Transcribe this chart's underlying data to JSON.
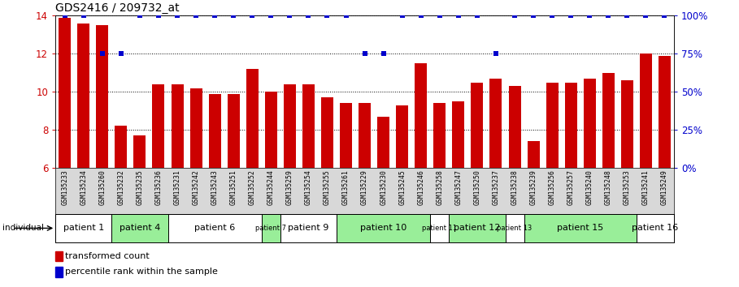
{
  "title": "GDS2416 / 209732_at",
  "samples": [
    "GSM135233",
    "GSM135234",
    "GSM135260",
    "GSM135232",
    "GSM135235",
    "GSM135236",
    "GSM135231",
    "GSM135242",
    "GSM135243",
    "GSM135251",
    "GSM135252",
    "GSM135244",
    "GSM135259",
    "GSM135254",
    "GSM135255",
    "GSM135261",
    "GSM135229",
    "GSM135230",
    "GSM135245",
    "GSM135246",
    "GSM135258",
    "GSM135247",
    "GSM135250",
    "GSM135237",
    "GSM135238",
    "GSM135239",
    "GSM135256",
    "GSM135257",
    "GSM135240",
    "GSM135248",
    "GSM135253",
    "GSM135241",
    "GSM135249"
  ],
  "bar_values": [
    13.9,
    13.6,
    13.5,
    8.2,
    7.7,
    10.4,
    10.4,
    10.2,
    9.9,
    9.9,
    11.2,
    10.0,
    10.4,
    10.4,
    9.7,
    9.4,
    9.4,
    8.7,
    9.3,
    11.5,
    9.4,
    9.5,
    10.5,
    10.7,
    10.3,
    7.4,
    10.5,
    10.5,
    10.7,
    11.0,
    10.6,
    12.0,
    11.9
  ],
  "percentile_values": [
    100,
    100,
    75,
    75,
    100,
    100,
    100,
    100,
    100,
    100,
    100,
    100,
    100,
    100,
    100,
    100,
    75,
    75,
    100,
    100,
    100,
    100,
    100,
    75,
    100,
    100,
    100,
    100,
    100,
    100,
    100,
    100,
    100
  ],
  "bar_color": "#cc0000",
  "dot_color": "#0000cc",
  "ylim": [
    6,
    14
  ],
  "yticks": [
    6,
    8,
    10,
    12,
    14
  ],
  "right_ylim": [
    0,
    100
  ],
  "right_yticks": [
    0,
    25,
    50,
    75,
    100
  ],
  "right_yticklabels": [
    "0%",
    "25%",
    "50%",
    "75%",
    "100%"
  ],
  "patients": [
    {
      "label": "patient 1",
      "start": 0,
      "end": 2,
      "color": "#ffffff"
    },
    {
      "label": "patient 4",
      "start": 3,
      "end": 5,
      "color": "#99ee99"
    },
    {
      "label": "patient 6",
      "start": 6,
      "end": 10,
      "color": "#ffffff"
    },
    {
      "label": "patient 7",
      "start": 11,
      "end": 11,
      "color": "#99ee99"
    },
    {
      "label": "patient 9",
      "start": 12,
      "end": 14,
      "color": "#ffffff"
    },
    {
      "label": "patient 10",
      "start": 15,
      "end": 19,
      "color": "#99ee99"
    },
    {
      "label": "patient 11",
      "start": 20,
      "end": 20,
      "color": "#ffffff"
    },
    {
      "label": "patient 12",
      "start": 21,
      "end": 23,
      "color": "#99ee99"
    },
    {
      "label": "patient 13",
      "start": 24,
      "end": 24,
      "color": "#ffffff"
    },
    {
      "label": "patient 15",
      "start": 25,
      "end": 30,
      "color": "#99ee99"
    },
    {
      "label": "patient 16",
      "start": 31,
      "end": 32,
      "color": "#ffffff"
    }
  ],
  "background_color": "#ffffff",
  "title_fontsize": 10,
  "xtick_bg": "#d8d8d8",
  "left_tick_color": "#cc0000",
  "right_tick_color": "#0000cc"
}
